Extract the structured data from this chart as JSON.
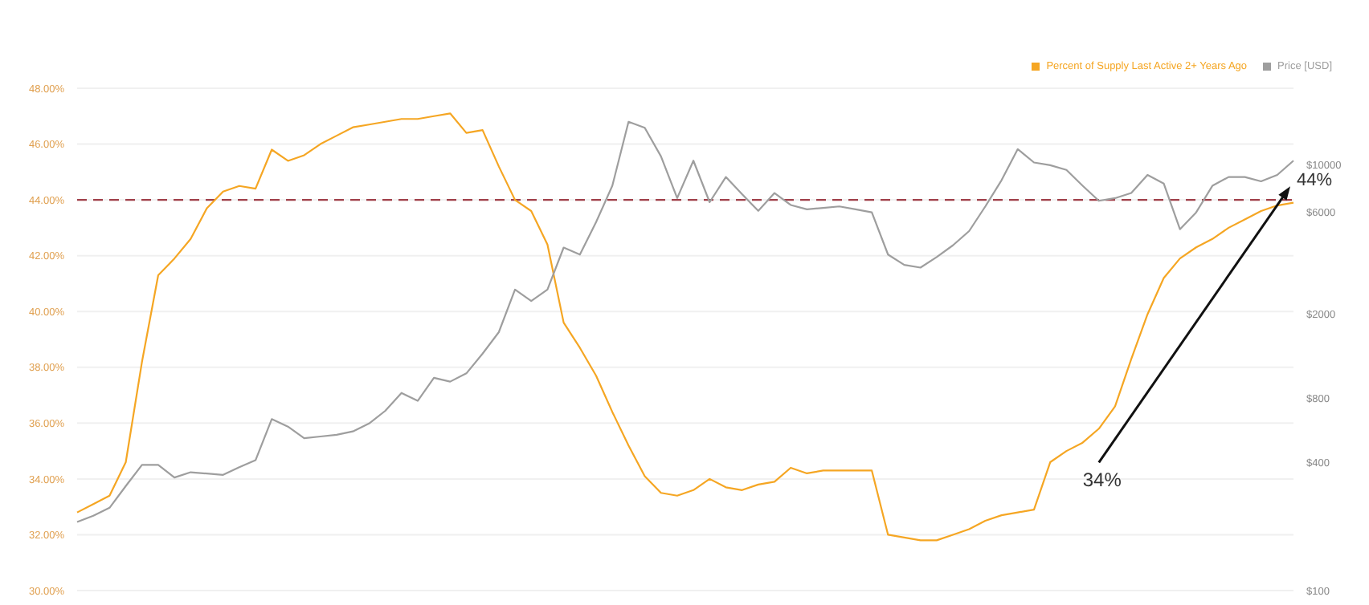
{
  "chart_data": {
    "type": "line",
    "categories": [
      null,
      null,
      null,
      null,
      null,
      null,
      null,
      null,
      null,
      null,
      null,
      null,
      null,
      null,
      null,
      null,
      null,
      null,
      null,
      null,
      null,
      null,
      null,
      null,
      null,
      null,
      null,
      null,
      null,
      null,
      null,
      null,
      null,
      null,
      null,
      null,
      null,
      null,
      null,
      null,
      null,
      null,
      null,
      null,
      null,
      null,
      null,
      null,
      null,
      null,
      null,
      null,
      null,
      null,
      null,
      null,
      null,
      null,
      null,
      null,
      null,
      null,
      null,
      null,
      null,
      null,
      null,
      null,
      null,
      null,
      null,
      null,
      null,
      null,
      null,
      null
    ],
    "series": [
      {
        "name": "Percent of Supply Last Active 2+ Years Ago",
        "color": "#f5a623",
        "values": [
          32.8,
          33.1,
          33.4,
          34.6,
          38.2,
          41.3,
          41.9,
          42.6,
          43.7,
          44.3,
          44.5,
          44.4,
          45.8,
          45.4,
          45.6,
          46.0,
          46.3,
          46.6,
          46.7,
          46.8,
          46.9,
          46.9,
          47.0,
          47.1,
          46.4,
          46.5,
          45.2,
          44.0,
          43.6,
          42.4,
          39.6,
          38.7,
          37.7,
          36.4,
          35.2,
          34.1,
          33.5,
          33.4,
          33.6,
          34.0,
          33.7,
          33.6,
          33.8,
          33.9,
          34.4,
          34.2,
          34.3,
          34.3,
          34.3,
          34.3,
          32.0,
          31.9,
          31.8,
          31.8,
          32.0,
          32.2,
          32.5,
          32.7,
          32.8,
          32.9,
          34.6,
          35.0,
          35.3,
          35.8,
          36.6,
          38.3,
          39.9,
          41.2,
          41.9,
          42.3,
          42.6,
          43.0,
          43.3,
          43.6,
          43.8,
          43.9
        ]
      },
      {
        "name": "Price [USD]",
        "color": "#9e9e9e",
        "axis": "y2",
        "values": [
          210,
          225,
          245,
          310,
          390,
          390,
          340,
          360,
          355,
          350,
          380,
          410,
          640,
          590,
          520,
          530,
          540,
          560,
          610,
          700,
          850,
          780,
          1000,
          960,
          1050,
          1300,
          1640,
          2600,
          2300,
          2600,
          4100,
          3800,
          5400,
          8000,
          16000,
          15000,
          11000,
          7000,
          10500,
          6700,
          8800,
          7300,
          6100,
          7400,
          6500,
          6200,
          6300,
          6400,
          6200,
          6000,
          3800,
          3400,
          3300,
          3700,
          4200,
          4900,
          6400,
          8500,
          11900,
          10300,
          10000,
          9500,
          8000,
          6800,
          7000,
          7400,
          9000,
          8200,
          5000,
          6000,
          8000,
          8800,
          8800,
          8400,
          9000,
          10500
        ]
      }
    ],
    "ylim": [
      30,
      48
    ],
    "yticks": [
      {
        "value": 30,
        "label": "30.00%"
      },
      {
        "value": 32,
        "label": "32.00%"
      },
      {
        "value": 34,
        "label": "34.00%"
      },
      {
        "value": 36,
        "label": "36.00%"
      },
      {
        "value": 38,
        "label": "38.00%"
      },
      {
        "value": 40,
        "label": "40.00%"
      },
      {
        "value": 42,
        "label": "42.00%"
      },
      {
        "value": 44,
        "label": "44.00%"
      },
      {
        "value": 46,
        "label": "46.00%"
      },
      {
        "value": 48,
        "label": "48.00%"
      }
    ],
    "y2lim": [
      100,
      23000
    ],
    "y2ticks": [
      {
        "value": 100,
        "label": "$100"
      },
      {
        "value": 400,
        "label": "$400"
      },
      {
        "value": 800,
        "label": "$800"
      },
      {
        "value": 2000,
        "label": "$2000"
      },
      {
        "value": 6000,
        "label": "$6000"
      },
      {
        "value": 10000,
        "label": "$10000"
      }
    ],
    "log": "y2",
    "grid": "y",
    "legend": "top right",
    "tick_labels": "y",
    "ref_lines": [
      {
        "axis": "y",
        "value": 44,
        "color": "#a0404a",
        "line_style": "dashed"
      }
    ],
    "annotations": [
      "44%",
      "34%"
    ]
  }
}
